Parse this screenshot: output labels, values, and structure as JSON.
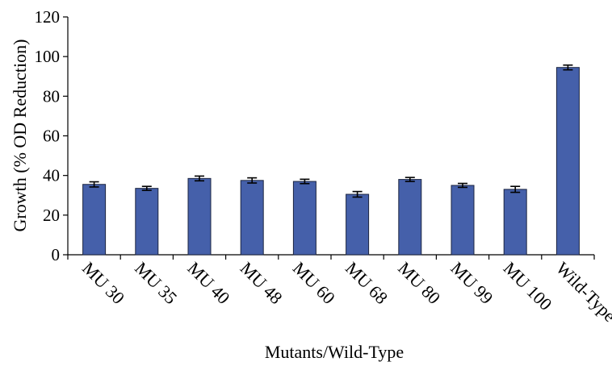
{
  "chart_data": {
    "type": "bar",
    "xlabel": "Mutants/Wild-Type",
    "ylabel": "Growth (% OD Reduction)",
    "ylim": [
      0,
      120
    ],
    "yticks": [
      "0",
      "20",
      "40",
      "60",
      "80",
      "100",
      "120"
    ],
    "categories": [
      "MU 30",
      "MU 35",
      "MU 40",
      "MU 48",
      "MU 60",
      "MU 68",
      "MU 80",
      "MU 99",
      "MU 100",
      "Wild-Type"
    ],
    "values": [
      35.5,
      33.5,
      38.5,
      37.5,
      37,
      30.5,
      38,
      35,
      33,
      94.5
    ],
    "errors": [
      1.3,
      1.0,
      1.2,
      1.3,
      1.1,
      1.4,
      1.0,
      1.0,
      1.5,
      1.2
    ],
    "bar_color": "#4560aa",
    "bar_edge_color": "#1c2540",
    "grid": false,
    "legend": "none"
  }
}
